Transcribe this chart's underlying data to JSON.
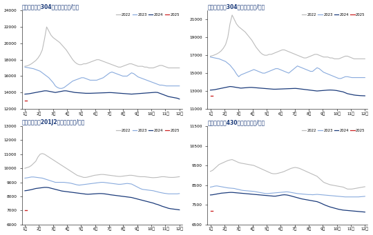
{
  "charts": [
    {
      "title": "佛山市场宝旺304冷轧价格（元/吨）",
      "ylim": [
        12000,
        24000
      ],
      "yticks": [
        12000,
        14000,
        16000,
        18000,
        20000,
        22000,
        24000
      ],
      "series": {
        "2022": {
          "color": "#bbbbbb",
          "lw": 0.8,
          "data": [
            17200,
            17250,
            17350,
            17500,
            17700,
            17900,
            18200,
            18600,
            19200,
            20500,
            22000,
            21500,
            21000,
            20700,
            20500,
            20300,
            20100,
            19800,
            19500,
            19200,
            18800,
            18400,
            18000,
            17700,
            17500,
            17400,
            17400,
            17500,
            17500,
            17600,
            17700,
            17800,
            17900,
            18000,
            18000,
            17900,
            17800,
            17700,
            17600,
            17500,
            17400,
            17300,
            17200,
            17100,
            17100,
            17200,
            17300,
            17400,
            17500,
            17500,
            17400,
            17300,
            17200,
            17200,
            17200,
            17100,
            17100,
            17000,
            17000,
            17000,
            17100,
            17200,
            17300,
            17300,
            17200,
            17100,
            17000,
            17000,
            17000,
            17000,
            17000,
            17000
          ]
        },
        "2023": {
          "color": "#88aadd",
          "lw": 0.8,
          "data": [
            17100,
            17050,
            17000,
            16950,
            16900,
            16800,
            16700,
            16600,
            16400,
            16200,
            16000,
            15800,
            15500,
            15200,
            14800,
            14600,
            14500,
            14500,
            14600,
            14800,
            15000,
            15200,
            15400,
            15500,
            15600,
            15700,
            15800,
            15800,
            15700,
            15600,
            15500,
            15500,
            15500,
            15500,
            15600,
            15700,
            15800,
            16000,
            16200,
            16400,
            16500,
            16400,
            16300,
            16200,
            16100,
            16000,
            16000,
            16000,
            16200,
            16400,
            16300,
            16100,
            15900,
            15800,
            15700,
            15600,
            15500,
            15400,
            15300,
            15200,
            15100,
            15000,
            14900,
            14900,
            14850,
            14800,
            14800,
            14800,
            14800,
            14800,
            14800,
            14800
          ]
        },
        "2024": {
          "color": "#1a3a7a",
          "lw": 0.9,
          "data": [
            13800,
            13820,
            13850,
            13900,
            13950,
            14000,
            14050,
            14100,
            14150,
            14200,
            14200,
            14150,
            14100,
            14050,
            14000,
            14050,
            14100,
            14150,
            14200,
            14200,
            14150,
            14100,
            14050,
            14000,
            13980,
            13960,
            13940,
            13920,
            13900,
            13900,
            13900,
            13910,
            13920,
            13930,
            13940,
            13950,
            13960,
            13970,
            13980,
            13990,
            13980,
            13960,
            13940,
            13920,
            13900,
            13880,
            13860,
            13840,
            13820,
            13800,
            13820,
            13840,
            13860,
            13880,
            13900,
            13920,
            13940,
            13960,
            13980,
            14000,
            14020,
            14000,
            13900,
            13800,
            13700,
            13600,
            13500,
            13450,
            13400,
            13350,
            13300,
            13200
          ]
        },
        "2025": {
          "color": "#cc2222",
          "lw": 0.8,
          "dot_only": true,
          "data": [
            13000
          ]
        }
      }
    },
    {
      "title": "佛山市场青山304热轧价格（元/吨）",
      "ylim": [
        11000,
        22000
      ],
      "yticks": [
        11000,
        13000,
        15000,
        17000,
        19000,
        21000
      ],
      "series": {
        "2022": {
          "color": "#bbbbbb",
          "lw": 0.8,
          "data": [
            16900,
            16950,
            17050,
            17150,
            17300,
            17500,
            17800,
            18200,
            19000,
            20500,
            21500,
            21000,
            20500,
            20200,
            20000,
            19800,
            19600,
            19300,
            19000,
            18700,
            18300,
            17900,
            17600,
            17300,
            17100,
            17000,
            17000,
            17100,
            17100,
            17200,
            17300,
            17400,
            17500,
            17600,
            17600,
            17500,
            17400,
            17300,
            17200,
            17100,
            17000,
            16900,
            16800,
            16700,
            16700,
            16800,
            16900,
            17000,
            17100,
            17100,
            17000,
            16900,
            16800,
            16800,
            16800,
            16700,
            16700,
            16600,
            16600,
            16600,
            16700,
            16800,
            16900,
            16900,
            16800,
            16700,
            16600,
            16600,
            16600,
            16600,
            16600,
            16600
          ]
        },
        "2023": {
          "color": "#88aadd",
          "lw": 0.8,
          "data": [
            16800,
            16750,
            16700,
            16650,
            16600,
            16500,
            16400,
            16300,
            16100,
            15900,
            15600,
            15300,
            14900,
            14600,
            14800,
            14900,
            15000,
            15100,
            15200,
            15300,
            15400,
            15300,
            15200,
            15100,
            15000,
            15000,
            15100,
            15200,
            15300,
            15400,
            15500,
            15500,
            15400,
            15300,
            15200,
            15100,
            15000,
            15200,
            15400,
            15600,
            15800,
            15700,
            15600,
            15500,
            15400,
            15300,
            15200,
            15200,
            15400,
            15600,
            15500,
            15300,
            15100,
            15000,
            14900,
            14800,
            14700,
            14600,
            14500,
            14400,
            14400,
            14500,
            14600,
            14600,
            14550,
            14500,
            14500,
            14500,
            14500,
            14500,
            14500,
            14500
          ]
        },
        "2024": {
          "color": "#1a3a7a",
          "lw": 0.9,
          "data": [
            13100,
            13120,
            13150,
            13200,
            13250,
            13300,
            13350,
            13400,
            13450,
            13500,
            13480,
            13440,
            13400,
            13360,
            13320,
            13340,
            13360,
            13380,
            13400,
            13400,
            13380,
            13360,
            13340,
            13320,
            13300,
            13280,
            13260,
            13240,
            13220,
            13200,
            13200,
            13210,
            13220,
            13230,
            13240,
            13250,
            13260,
            13270,
            13280,
            13290,
            13270,
            13240,
            13210,
            13180,
            13150,
            13120,
            13090,
            13060,
            13030,
            13000,
            13020,
            13040,
            13060,
            13080,
            13100,
            13110,
            13100,
            13080,
            13050,
            13000,
            12950,
            12900,
            12800,
            12700,
            12650,
            12600,
            12550,
            12520,
            12500,
            12480,
            12470,
            12460
          ]
        },
        "2025": {
          "color": "#cc2222",
          "lw": 0.8,
          "dot_only": true,
          "data": [
            12500
          ]
        }
      }
    },
    {
      "title": "佛山市场宝旺201J2冷轧价格（元/吨）",
      "ylim": [
        6000,
        13000
      ],
      "yticks": [
        6000,
        7000,
        8000,
        9000,
        10000,
        11000,
        12000,
        13000
      ],
      "series": {
        "2022": {
          "color": "#bbbbbb",
          "lw": 0.8,
          "data": [
            10000,
            10050,
            10100,
            10200,
            10350,
            10500,
            10800,
            11000,
            11050,
            11000,
            10900,
            10800,
            10700,
            10600,
            10500,
            10400,
            10300,
            10200,
            10100,
            10000,
            9900,
            9800,
            9700,
            9600,
            9500,
            9450,
            9400,
            9350,
            9350,
            9380,
            9420,
            9460,
            9500,
            9520,
            9540,
            9560,
            9560,
            9540,
            9520,
            9500,
            9480,
            9460,
            9440,
            9420,
            9420,
            9440,
            9460,
            9480,
            9500,
            9500,
            9480,
            9450,
            9420,
            9400,
            9400,
            9400,
            9380,
            9360,
            9340,
            9330,
            9340,
            9350,
            9380,
            9400,
            9400,
            9380,
            9360,
            9350,
            9350,
            9360,
            9380,
            9400
          ]
        },
        "2023": {
          "color": "#88aadd",
          "lw": 0.8,
          "data": [
            9300,
            9320,
            9350,
            9380,
            9380,
            9360,
            9340,
            9320,
            9300,
            9250,
            9200,
            9150,
            9100,
            9050,
            9000,
            9000,
            9000,
            9000,
            9000,
            8980,
            8960,
            8940,
            8900,
            8860,
            8820,
            8800,
            8820,
            8840,
            8860,
            8880,
            8900,
            8920,
            8940,
            8960,
            8980,
            9000,
            9000,
            8980,
            8960,
            8940,
            8920,
            8900,
            8880,
            8860,
            8860,
            8880,
            8900,
            8920,
            8900,
            8880,
            8800,
            8720,
            8640,
            8560,
            8500,
            8480,
            8460,
            8440,
            8420,
            8400,
            8360,
            8320,
            8280,
            8250,
            8220,
            8200,
            8180,
            8180,
            8180,
            8180,
            8180,
            8200
          ]
        },
        "2024": {
          "color": "#1a3a7a",
          "lw": 0.9,
          "data": [
            8400,
            8420,
            8450,
            8480,
            8520,
            8560,
            8580,
            8600,
            8620,
            8640,
            8640,
            8620,
            8580,
            8540,
            8500,
            8460,
            8420,
            8380,
            8360,
            8340,
            8320,
            8300,
            8280,
            8260,
            8240,
            8220,
            8200,
            8180,
            8160,
            8150,
            8160,
            8170,
            8180,
            8190,
            8200,
            8200,
            8190,
            8170,
            8150,
            8120,
            8100,
            8080,
            8060,
            8040,
            8020,
            8000,
            7980,
            7960,
            7940,
            7920,
            7880,
            7840,
            7800,
            7760,
            7720,
            7680,
            7640,
            7600,
            7560,
            7520,
            7460,
            7420,
            7360,
            7300,
            7250,
            7200,
            7150,
            7120,
            7100,
            7080,
            7060,
            7040
          ]
        },
        "2025": {
          "color": "#cc2222",
          "lw": 0.8,
          "dot_only": true,
          "data": [
            7000
          ]
        }
      }
    },
    {
      "title": "佛山市场太钢430冷轧价格（元/吨）",
      "ylim": [
        6500,
        11500
      ],
      "yticks": [
        6500,
        7500,
        8500,
        9500,
        10500,
        11500
      ],
      "series": {
        "2022": {
          "color": "#bbbbbb",
          "lw": 0.8,
          "data": [
            9200,
            9250,
            9350,
            9450,
            9550,
            9600,
            9650,
            9700,
            9750,
            9780,
            9800,
            9750,
            9700,
            9650,
            9620,
            9600,
            9580,
            9560,
            9540,
            9520,
            9500,
            9450,
            9400,
            9350,
            9300,
            9250,
            9200,
            9150,
            9100,
            9080,
            9080,
            9100,
            9130,
            9160,
            9200,
            9250,
            9300,
            9350,
            9380,
            9400,
            9380,
            9350,
            9300,
            9250,
            9200,
            9150,
            9100,
            9050,
            9000,
            8950,
            8850,
            8750,
            8650,
            8600,
            8560,
            8520,
            8500,
            8480,
            8460,
            8440,
            8420,
            8400,
            8350,
            8300,
            8300,
            8300,
            8320,
            8340,
            8360,
            8380,
            8400,
            8420
          ]
        },
        "2023": {
          "color": "#88aadd",
          "lw": 0.8,
          "data": [
            8400,
            8420,
            8450,
            8460,
            8440,
            8420,
            8400,
            8380,
            8360,
            8350,
            8340,
            8330,
            8300,
            8280,
            8250,
            8230,
            8220,
            8210,
            8200,
            8190,
            8180,
            8160,
            8140,
            8120,
            8100,
            8080,
            8070,
            8080,
            8090,
            8100,
            8110,
            8120,
            8130,
            8140,
            8150,
            8160,
            8150,
            8130,
            8110,
            8090,
            8070,
            8060,
            8050,
            8040,
            8030,
            8020,
            8020,
            8010,
            8020,
            8030,
            8020,
            8010,
            8000,
            7990,
            7980,
            7970,
            7960,
            7950,
            7940,
            7930,
            7920,
            7910,
            7900,
            7900,
            7900,
            7900,
            7900,
            7900,
            7900,
            7910,
            7920,
            7930
          ]
        },
        "2024": {
          "color": "#1a3a7a",
          "lw": 0.9,
          "data": [
            8000,
            8010,
            8030,
            8050,
            8070,
            8090,
            8100,
            8110,
            8120,
            8130,
            8130,
            8120,
            8110,
            8100,
            8090,
            8080,
            8070,
            8060,
            8050,
            8040,
            8030,
            8020,
            8010,
            8000,
            7990,
            7980,
            7970,
            7960,
            7950,
            7940,
            7940,
            7960,
            7980,
            8000,
            8010,
            8000,
            7980,
            7950,
            7920,
            7890,
            7860,
            7830,
            7800,
            7780,
            7760,
            7740,
            7720,
            7700,
            7680,
            7660,
            7620,
            7570,
            7520,
            7470,
            7430,
            7390,
            7360,
            7330,
            7300,
            7270,
            7250,
            7230,
            7220,
            7210,
            7200,
            7190,
            7180,
            7170,
            7160,
            7150,
            7140,
            7130
          ]
        },
        "2025": {
          "color": "#cc2222",
          "lw": 0.8,
          "dot_only": true,
          "data": [
            7200
          ]
        }
      }
    }
  ],
  "x_labels": [
    "1月",
    "2月",
    "3月",
    "4月",
    "5月",
    "6月",
    "7月",
    "8月",
    "9月",
    "10月",
    "11月",
    "12月"
  ],
  "legend_order": [
    "2022",
    "2023",
    "2024",
    "2025"
  ],
  "title_color": "#1a3a7a",
  "background_color": "#ffffff"
}
